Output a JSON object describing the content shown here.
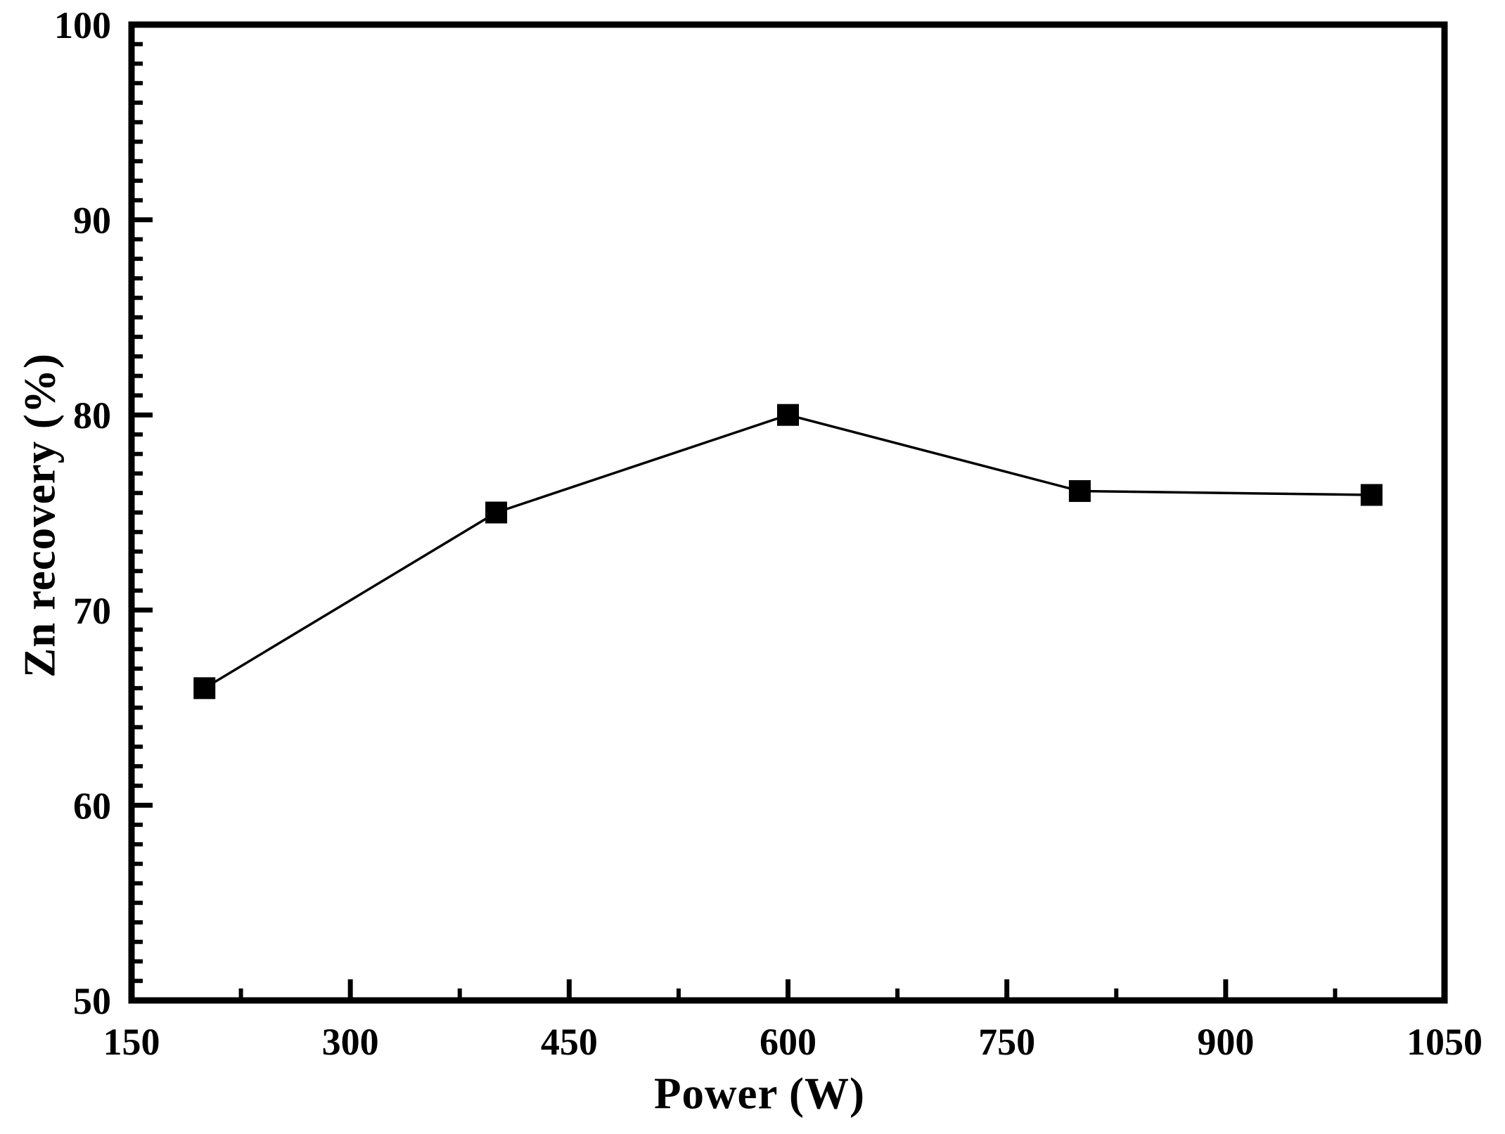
{
  "figure": {
    "background_color": "#ffffff",
    "text_color": "#000000"
  },
  "chart_data": {
    "type": "line",
    "title": "",
    "xlabel": "Power (W)",
    "ylabel": "Zn recovery (%)",
    "series": [
      {
        "name": "Zn recovery",
        "x": [
          200,
          400,
          600,
          800,
          1000
        ],
        "y": [
          66,
          75,
          80,
          76.1,
          75.9
        ],
        "marker": "filled-square",
        "marker_color": "#000000",
        "line_color": "#000000"
      }
    ],
    "xlim": [
      150,
      1050
    ],
    "ylim": [
      50,
      100
    ],
    "x_major_ticks": [
      150,
      300,
      450,
      600,
      750,
      900,
      1050
    ],
    "x_tick_labels": [
      "150",
      "300",
      "450",
      "600",
      "750",
      "900",
      "1050"
    ],
    "x_minor_step": 75,
    "y_major_ticks": [
      50,
      60,
      70,
      80,
      90,
      100
    ],
    "y_tick_labels": [
      "50",
      "60",
      "70",
      "80",
      "90",
      "100"
    ],
    "y_minor_step": 1,
    "grid": false,
    "legend_position": "none",
    "frame": "full-box",
    "tick_direction": "in",
    "axis_color": "#000000"
  }
}
